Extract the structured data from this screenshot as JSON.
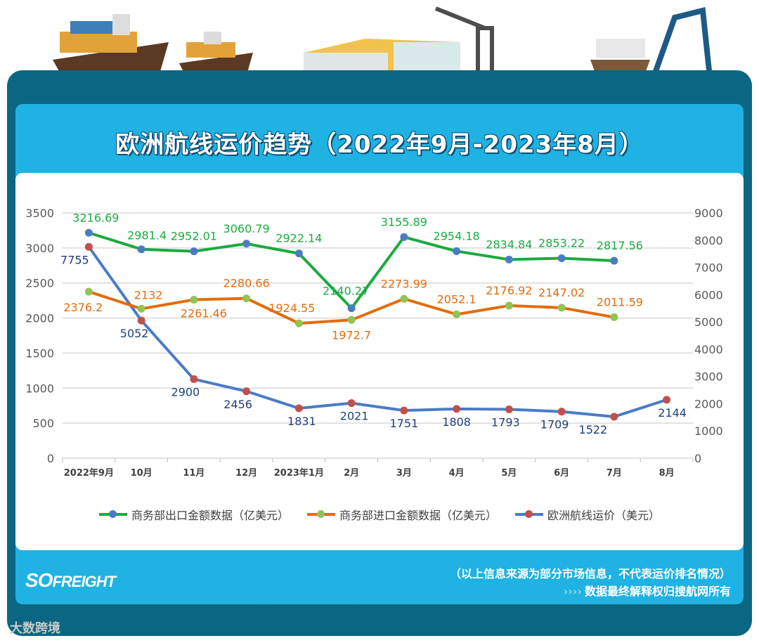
{
  "title": "欧洲航线运价趋势（2022年9月-2023年8月）",
  "chart_data": {
    "type": "line",
    "title": "欧洲航线运价趋势（2022年9月-2023年8月）",
    "categories": [
      "2022年9月",
      "10月",
      "11月",
      "12月",
      "2023年1月",
      "2月",
      "3月",
      "4月",
      "5月",
      "6月",
      "7月",
      "8月"
    ],
    "y_left": {
      "ylim": [
        0,
        3500
      ],
      "ticks": [
        0,
        500,
        1000,
        1500,
        2000,
        2500,
        3000,
        3500
      ]
    },
    "y_right": {
      "ylim": [
        0,
        9000
      ],
      "ticks": [
        0,
        1000,
        2000,
        3000,
        4000,
        5000,
        6000,
        7000,
        8000,
        9000
      ]
    },
    "grid": true,
    "legend_placement": "bottom",
    "series": [
      {
        "name": "商务部出口金额数据（亿美元）",
        "axis": "left",
        "line_color": "#1aab3e",
        "marker_color": "#4a7cc4",
        "values": [
          3216.69,
          2981.4,
          2952.01,
          3060.79,
          2922.14,
          2140.27,
          3155.89,
          2954.18,
          2834.84,
          2853.22,
          2817.56,
          null
        ],
        "labels": [
          "3216.69",
          "2981.4",
          "2952.01",
          "3060.79",
          "2922.14",
          "2140.27",
          "3155.89",
          "2954.18",
          "2834.84",
          "2853.22",
          "2817.56",
          ""
        ]
      },
      {
        "name": "商务部进口金额数据（亿美元）",
        "axis": "left",
        "line_color": "#e36c0a",
        "marker_color": "#92c353",
        "values": [
          2376.2,
          2132,
          2261.46,
          2280.66,
          1924.55,
          1972.7,
          2273.99,
          2052.1,
          2176.92,
          2147.02,
          2011.59,
          null
        ],
        "labels": [
          "2376.2",
          "2132",
          "2261.46",
          "2280.66",
          "1924.55",
          "1972.7",
          "2273.99",
          "2052.1",
          "2176.92",
          "2147.02",
          "2011.59",
          ""
        ]
      },
      {
        "name": "欧洲航线运价（美元）",
        "axis": "right",
        "line_color": "#4a7cc4",
        "marker_color": "#c0504d",
        "values": [
          7755,
          5052,
          2900,
          2456,
          1831,
          2021,
          1751,
          1808,
          1793,
          1709,
          1522,
          2144
        ],
        "labels": [
          "7755",
          "5052",
          "2900",
          "2456",
          "1831",
          "2021",
          "1751",
          "1808",
          "1793",
          "1709",
          "1522",
          "2144"
        ]
      }
    ]
  },
  "colors": {
    "frame": "#0b6683",
    "panel": "#1fb2e2",
    "export_label": "#1aab3e",
    "import_label": "#e36c0a",
    "freight_label": "#1f3f7a"
  },
  "footer": {
    "logo": "SOFREIGHT",
    "note": "（以上信息来源为部分市场信息，不代表运价排名情况）",
    "copyright_arrows": "››››",
    "copyright": "数据最终解释权归搜航网所有"
  },
  "watermark": "大数跨境"
}
